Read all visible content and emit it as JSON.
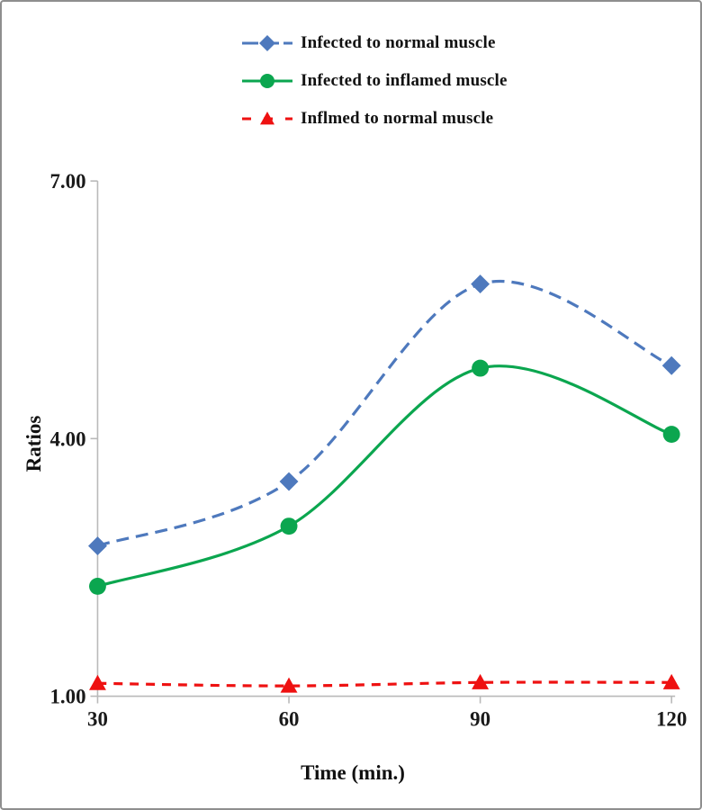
{
  "figure": {
    "background_color": "#ffffff",
    "border_color": "#8e8e8e"
  },
  "chart_data": {
    "type": "line",
    "title": "",
    "xlabel": "Time (min.)",
    "ylabel": "Ratios",
    "x": [
      30,
      60,
      90,
      120
    ],
    "xtick_labels": [
      "30",
      "60",
      "90",
      "120"
    ],
    "ylim": [
      1,
      7
    ],
    "yticks": [
      1,
      4,
      7
    ],
    "ytick_labels": [
      "1.00",
      "4.00",
      "7.00"
    ],
    "grid": false,
    "legend_position": "top-center",
    "line_smoothing": true,
    "axis_color": "#b9b9b9",
    "text_color": "#1a1a1a",
    "series": [
      {
        "name": "Infected to normal muscle",
        "values": [
          2.75,
          3.5,
          5.8,
          4.85
        ],
        "color": "#4e79bd",
        "marker": "diamond",
        "line_style": "dashed"
      },
      {
        "name": "Infected to inflamed muscle",
        "values": [
          2.28,
          2.98,
          4.82,
          4.05
        ],
        "color": "#0ba64f",
        "marker": "circle",
        "line_style": "solid"
      },
      {
        "name": "Inflmed to normal muscle",
        "values": [
          1.15,
          1.12,
          1.16,
          1.16
        ],
        "color": "#ee1111",
        "marker": "triangle-up",
        "line_style": "dashed"
      }
    ]
  }
}
